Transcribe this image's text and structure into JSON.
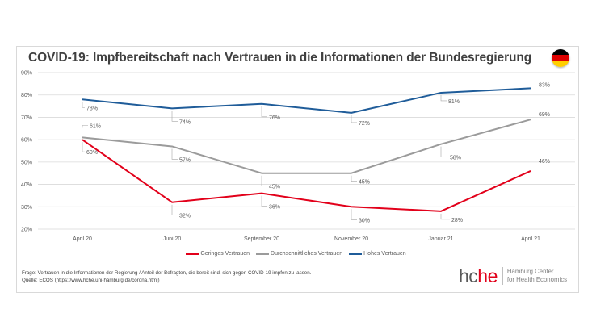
{
  "title": "COVID-19: Impfbereitschaft nach Vertrauen in die Informationen der Bundesregierung",
  "flag": {
    "icon": "germany-flag-icon",
    "colors": [
      "#000000",
      "#dd0000",
      "#ffce00"
    ]
  },
  "chart_data": {
    "type": "line",
    "title": "COVID-19: Impfbereitschaft nach Vertrauen in die Informationen der Bundesregierung",
    "xlabel": "",
    "ylabel": "",
    "categories": [
      "April 20",
      "Juni 20",
      "September 20",
      "November 20",
      "Januar 21",
      "April 21"
    ],
    "ylim": [
      20,
      90
    ],
    "yticks": [
      20,
      30,
      40,
      50,
      60,
      70,
      80,
      90
    ],
    "ytick_labels": [
      "20%",
      "30%",
      "40%",
      "50%",
      "60%",
      "70%",
      "80%",
      "90%"
    ],
    "grid": true,
    "legend_position": "bottom",
    "series": [
      {
        "name": "Geringes Vertrauen",
        "color": "#e2001a",
        "values": [
          60,
          32,
          36,
          30,
          28,
          46
        ],
        "labels": [
          "60%",
          "32%",
          "36%",
          "30%",
          "28%",
          "46%"
        ]
      },
      {
        "name": "Durchschnittliches Vertrauen",
        "color": "#9b9b9b",
        "values": [
          61,
          57,
          45,
          45,
          58,
          69
        ],
        "labels": [
          "61%",
          "57%",
          "45%",
          "45%",
          "58%",
          "69%"
        ]
      },
      {
        "name": "Hohes Vertrauen",
        "color": "#1f5c99",
        "values": [
          78,
          74,
          76,
          72,
          81,
          83
        ],
        "labels": [
          "78%",
          "74%",
          "76%",
          "72%",
          "81%",
          "83%"
        ]
      }
    ]
  },
  "footnote": {
    "line1": "Frage: Vertrauen in die Informationen der Regierung / Anteil der Befragten, die bereit sind, sich gegen COVID-19 impfen zu lassen.",
    "line2": "Quelle: ECOS (https://www.hche.uni-hamburg.de/corona.html)"
  },
  "logo": {
    "mark_part1": "hc",
    "mark_part2": "he",
    "line1": "Hamburg Center",
    "line2": "for Health Economics"
  }
}
